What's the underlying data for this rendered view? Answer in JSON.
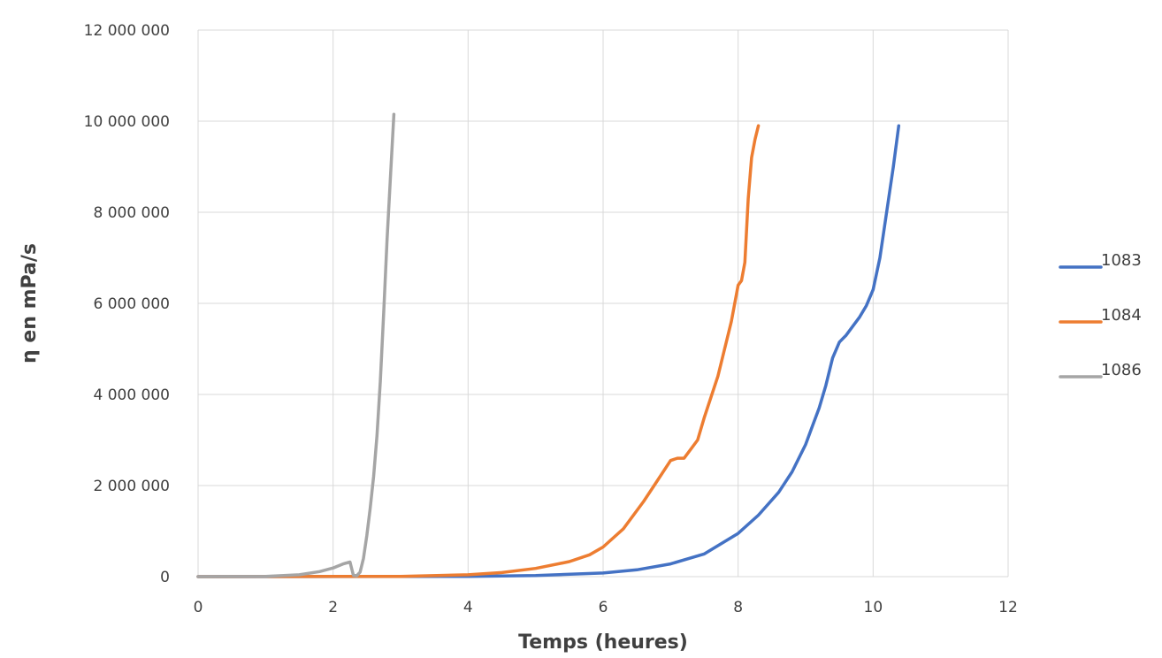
{
  "chart_data": {
    "type": "line",
    "title": "",
    "xlabel": "Temps (heures)",
    "ylabel": "η en mPa/s",
    "xlim": [
      0,
      12
    ],
    "ylim": [
      0,
      12000000
    ],
    "xticks": [
      0,
      2,
      4,
      6,
      8,
      10,
      12
    ],
    "yticks": [
      0,
      2000000,
      4000000,
      6000000,
      8000000,
      10000000,
      12000000
    ],
    "xtick_labels": [
      "0",
      "2",
      "4",
      "6",
      "8",
      "10",
      "12"
    ],
    "ytick_labels": [
      "0",
      "2 000 000",
      "4 000 000",
      "6 000 000",
      "8 000 000",
      "10 000 000",
      "12 000 000"
    ],
    "grid": "major x and y",
    "legend_position": "right",
    "series": [
      {
        "name": "1083",
        "color": "#4472c4",
        "x": [
          0,
          4,
          5,
          6,
          6.5,
          7,
          7.5,
          8,
          8.3,
          8.6,
          8.8,
          9.0,
          9.1,
          9.2,
          9.3,
          9.4,
          9.5,
          9.6,
          9.7,
          9.8,
          9.9,
          10.0,
          10.1,
          10.2,
          10.3,
          10.38
        ],
        "y": [
          0,
          5000,
          25000,
          80000,
          150000,
          280000,
          500000,
          950000,
          1350000,
          1850000,
          2300000,
          2900000,
          3300000,
          3700000,
          4200000,
          4800000,
          5150000,
          5300000,
          5500000,
          5700000,
          5950000,
          6300000,
          7000000,
          8000000,
          9000000,
          9900000
        ]
      },
      {
        "name": "1084",
        "color": "#ed7d31",
        "x": [
          0,
          3,
          4,
          4.5,
          5,
          5.5,
          5.8,
          6.0,
          6.3,
          6.6,
          6.8,
          7.0,
          7.1,
          7.2,
          7.4,
          7.5,
          7.7,
          7.9,
          8.0,
          8.05,
          8.1,
          8.15,
          8.2,
          8.25,
          8.3
        ],
        "y": [
          0,
          5000,
          40000,
          90000,
          180000,
          330000,
          480000,
          650000,
          1050000,
          1650000,
          2100000,
          2550000,
          2600000,
          2600000,
          3000000,
          3500000,
          4400000,
          5600000,
          6400000,
          6500000,
          6900000,
          8300000,
          9200000,
          9600000,
          9900000
        ]
      },
      {
        "name": "1086",
        "color": "#a5a5a5",
        "x": [
          0,
          1,
          1.5,
          1.8,
          2.0,
          2.15,
          2.25,
          2.3,
          2.35,
          2.4,
          2.45,
          2.5,
          2.55,
          2.6,
          2.65,
          2.7,
          2.75,
          2.8,
          2.85,
          2.9
        ],
        "y": [
          0,
          5000,
          40000,
          110000,
          190000,
          280000,
          320000,
          30000,
          20000,
          100000,
          400000,
          900000,
          1500000,
          2200000,
          3100000,
          4300000,
          5800000,
          7400000,
          8800000,
          10150000
        ]
      }
    ]
  }
}
